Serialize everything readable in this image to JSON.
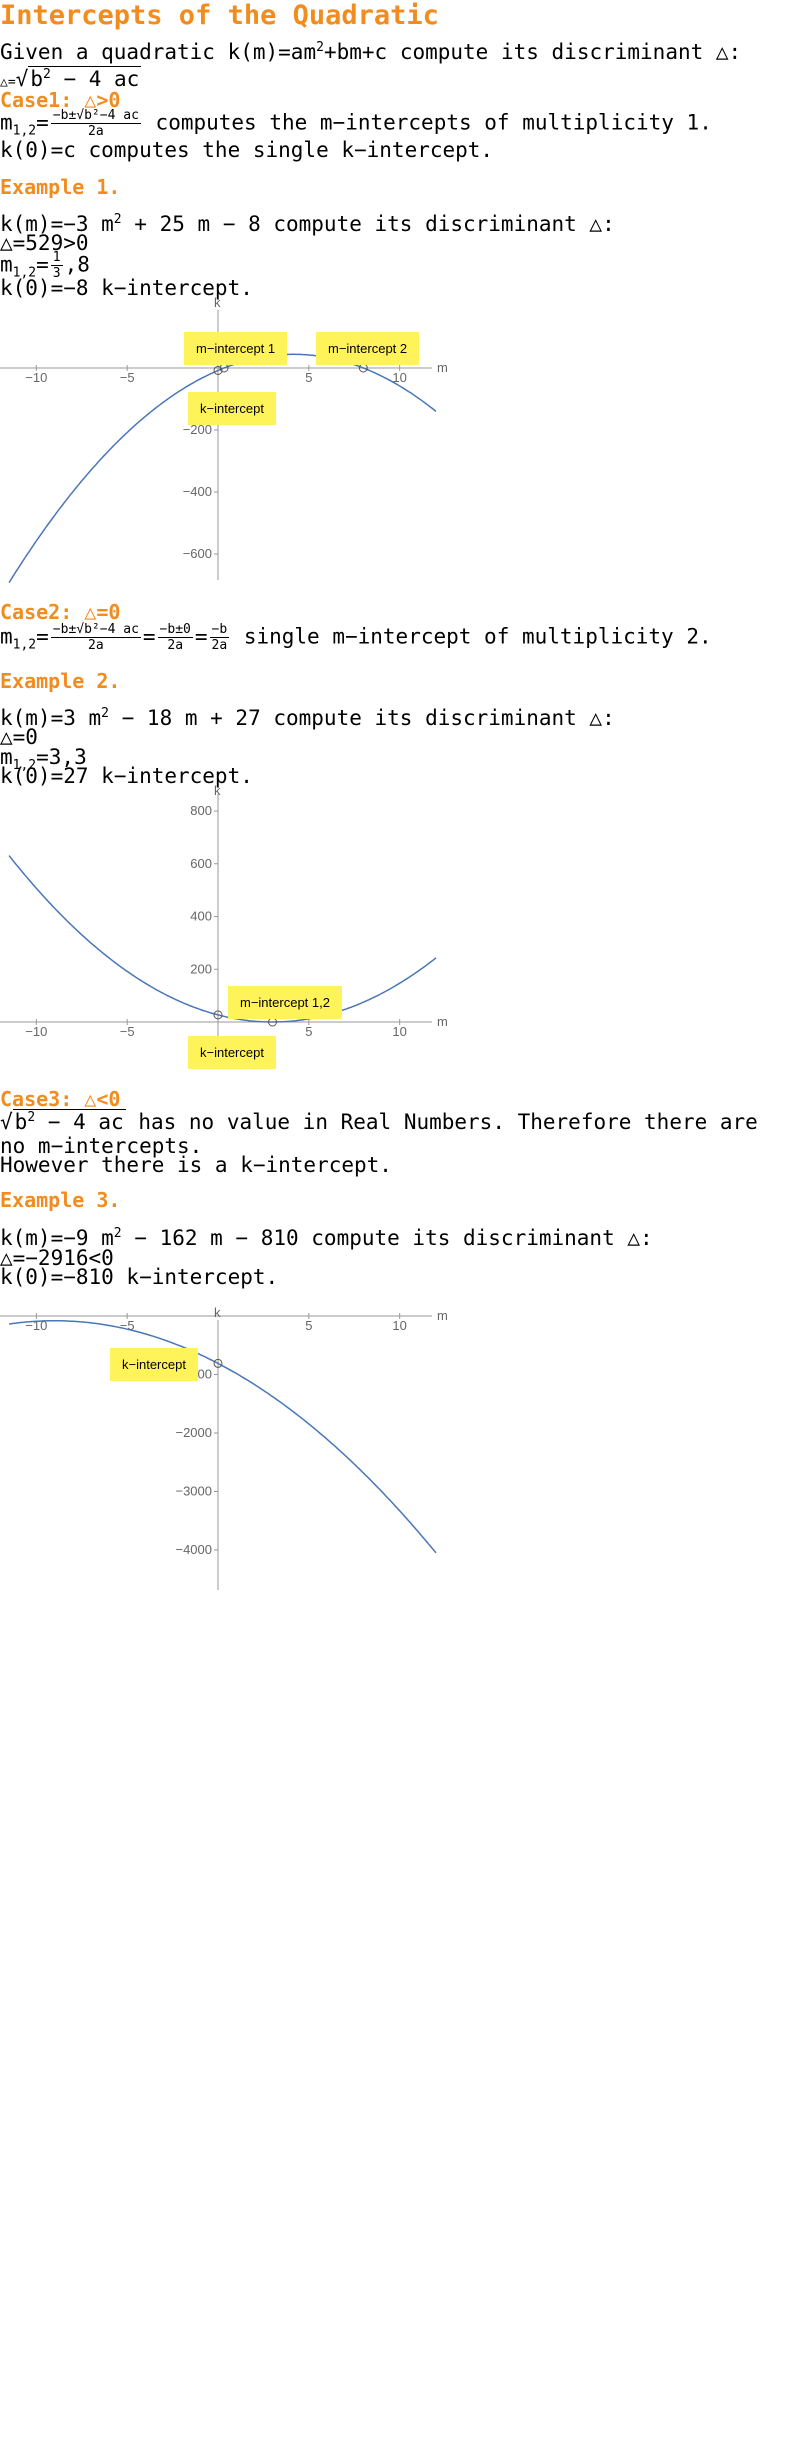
{
  "title": "Intercepts of the Quadratic",
  "intro": {
    "given": "Given a quadratic",
    "func": "k(m)=am",
    "func_rest": "+bm+c",
    "compute": "compute its discriminant △:",
    "disc_lhs": "△=",
    "disc_rad": "b",
    "disc_rad_rest": "− 4 ac"
  },
  "case1": {
    "heading": "Case1: △>0",
    "m12": "m",
    "m12_sub": "1,2",
    "formula_num": "−b±√b²−4 ac",
    "formula_den": "2a",
    "line1_text": "computes the m−intercepts of multiplicity 1.",
    "line2": "k(0)=c computes the single k−intercept."
  },
  "example1": {
    "heading": "Example 1.",
    "line1a": "k(m)=−3 m",
    "line1b": "+ 25 m − 8 compute its discriminant △:",
    "line2": "△=529>0",
    "line3a": "m",
    "line3_sub": "1,2",
    "line3_eq": "=",
    "line3_num": "1",
    "line3_den": "3",
    "line3_rest": ",8",
    "line4": "k(0)=−8  k−intercept."
  },
  "case2": {
    "heading": "Case2: △=0",
    "m12": "m",
    "m12_sub": "1,2",
    "f1_num": "−b±√b²−4 ac",
    "f1_den": "2a",
    "f2_num": "−b±0",
    "f2_den": "2a",
    "f3_num": "−b",
    "f3_den": "2a",
    "text": "single m−intercept of multiplicity 2."
  },
  "example2": {
    "heading": "Example 2.",
    "line1a": "k(m)=3 m",
    "line1b": "− 18 m + 27 compute its discriminant △:",
    "line2": "△=0",
    "line3": "m",
    "line3_sub": "1,2",
    "line3_rest": "=3,3",
    "line4": "k(0)=27  k−intercept."
  },
  "case3": {
    "heading": "Case3: △<0",
    "rad": "b",
    "rad_rest": "− 4 ac",
    "text1": "has no value in Real Numbers. Therefore there are",
    "text2": "no m−intercepts.",
    "text3": "However there is a k−intercept."
  },
  "example3": {
    "heading": "Example 3.",
    "line1a": "k(m)=−9 m",
    "line1b": "− 162 m − 810 compute its discriminant △:",
    "line2": "△=−2916<0",
    "line3": "k(0)=−810 k−intercept."
  },
  "plots": {
    "axis_x": "m",
    "axis_y": "k",
    "p1_labels": {
      "m1": "m−intercept 1",
      "m2": "m−intercept 2",
      "k": "k−intercept"
    },
    "p2_labels": {
      "m": "m−intercept 1,2",
      "k": "k−intercept"
    },
    "p3_labels": {
      "k": "k−intercept"
    }
  },
  "chart_data": [
    {
      "type": "line",
      "function": "k(m) = -3m^2 + 25m - 8",
      "coefficients": {
        "a": -3,
        "b": 25,
        "c": -8
      },
      "xlabel": "m",
      "ylabel": "k",
      "xlim": [
        -12,
        12
      ],
      "ylim": [
        -700,
        50
      ],
      "xticks": [
        -10,
        -5,
        5,
        10
      ],
      "yticks": [
        -200,
        -400,
        -600
      ],
      "annotations": [
        "m−intercept 1",
        "m−intercept 2",
        "k−intercept"
      ],
      "marked_points": [
        [
          0.3333,
          0
        ],
        [
          8,
          0
        ],
        [
          0,
          -8
        ]
      ],
      "color": "#4a76b8"
    },
    {
      "type": "line",
      "function": "k(m) = 3m^2 - 18m + 27",
      "coefficients": {
        "a": 3,
        "b": -18,
        "c": 27
      },
      "xlabel": "m",
      "ylabel": "k",
      "xlim": [
        -12,
        12
      ],
      "ylim": [
        0,
        820
      ],
      "xticks": [
        -10,
        -5,
        5,
        10
      ],
      "yticks": [
        200,
        400,
        600,
        800
      ],
      "annotations": [
        "m−intercept 1,2",
        "k−intercept"
      ],
      "marked_points": [
        [
          3,
          0
        ],
        [
          0,
          27
        ]
      ],
      "color": "#4a76b8"
    },
    {
      "type": "line",
      "function": "k(m) = -9m^2 - 162m - 810",
      "coefficients": {
        "a": -9,
        "b": -162,
        "c": -810
      },
      "xlabel": "m",
      "ylabel": "k",
      "xlim": [
        -12,
        12
      ],
      "ylim": [
        -4100,
        0
      ],
      "xticks": [
        -10,
        -5,
        5,
        10
      ],
      "yticks": [
        -1000,
        -2000,
        -3000,
        -4000
      ],
      "annotations": [
        "k−intercept"
      ],
      "marked_points": [
        [
          0,
          -810
        ]
      ],
      "color": "#4a76b8"
    }
  ]
}
